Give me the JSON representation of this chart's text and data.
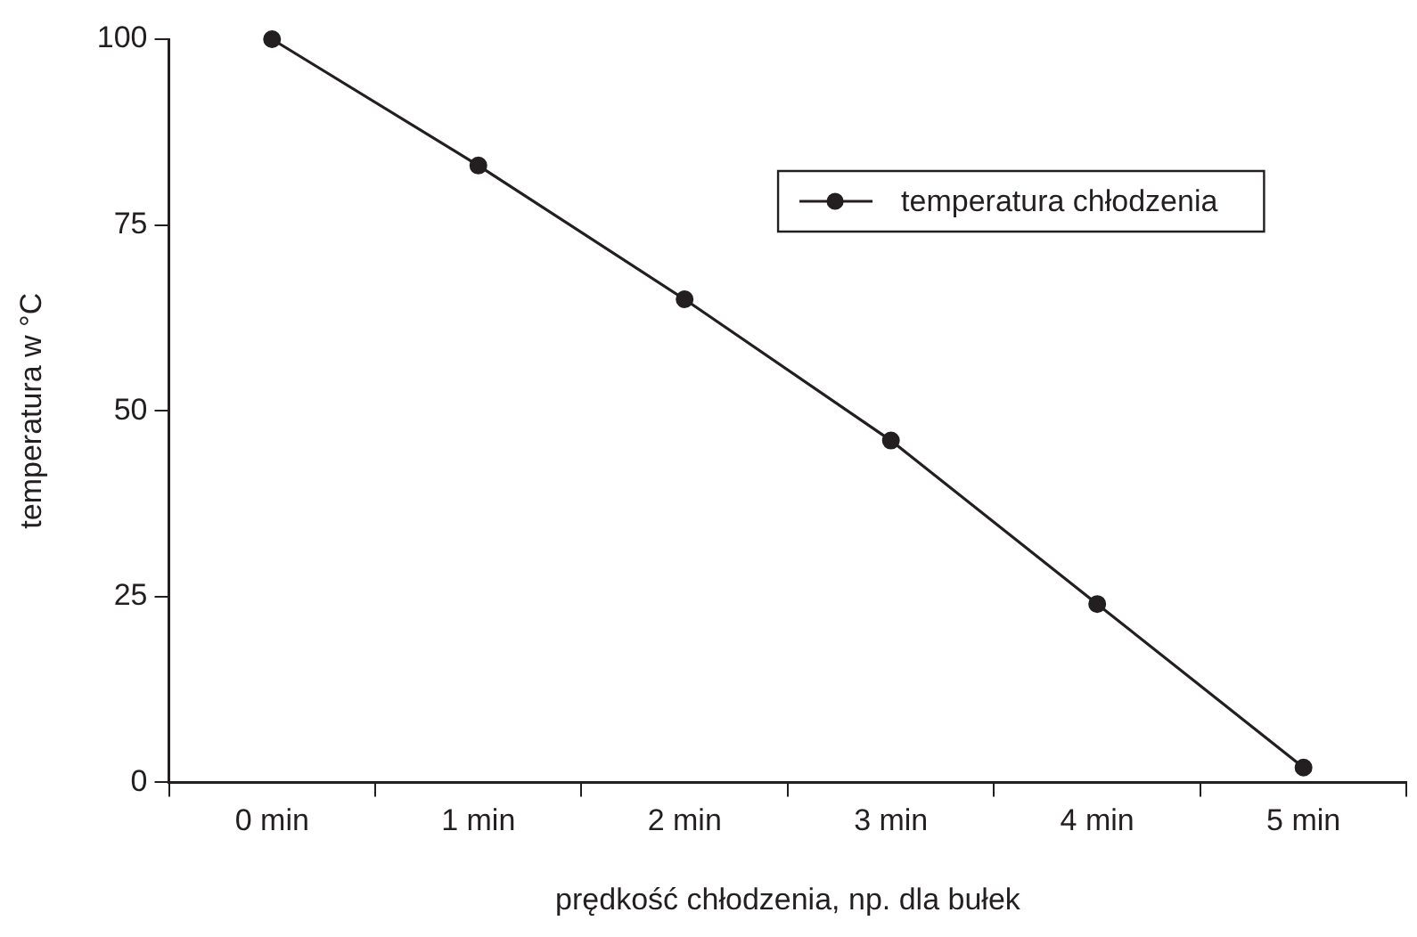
{
  "chart_data": {
    "type": "line",
    "xlabel": "prędkość chłodzenia, np. dla bułek",
    "ylabel": "temperatura w °C",
    "categories": [
      "0 min",
      "1 min",
      "2 min",
      "3 min",
      "4 min",
      "5 min"
    ],
    "series": [
      {
        "name": "temperatura chłodzenia",
        "color": "#231f20",
        "values": [
          100,
          83,
          65,
          46,
          24,
          2
        ]
      }
    ],
    "ylim": [
      0,
      100
    ],
    "yticks": [
      0,
      25,
      50,
      75,
      100
    ],
    "grid": false,
    "legend": "top right",
    "marker": "circle",
    "line_style": "solid"
  }
}
